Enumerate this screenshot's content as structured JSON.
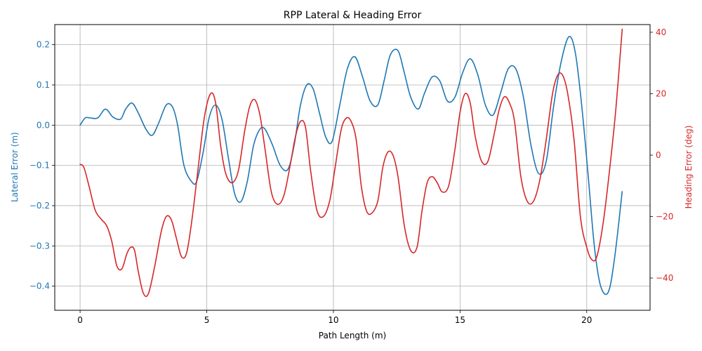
{
  "chart_data": {
    "type": "line",
    "title": "RPP Lateral & Heading Error",
    "xlabel": "Path Length (m)",
    "ylabel_left": "Lateral Error (m)",
    "ylabel_right": "Heading Error (deg)",
    "xlim": [
      -1.0,
      22.5
    ],
    "ylim_left": [
      -0.46,
      0.25
    ],
    "ylim_right": [
      -50.5,
      42.5
    ],
    "grid": true,
    "x_ticks": [
      0,
      5,
      10,
      15,
      20
    ],
    "y_ticks_left": [
      0.2,
      0.1,
      0.0,
      -0.1,
      -0.2,
      -0.3,
      -0.4
    ],
    "y_ticks_right": [
      40,
      20,
      0,
      -20,
      -40
    ],
    "x_tick_labels": [
      "0",
      "5",
      "10",
      "15",
      "20"
    ],
    "y_tick_labels_left": [
      "0.2",
      "0.1",
      "0.0",
      "−0.1",
      "−0.2",
      "−0.3",
      "−0.4"
    ],
    "y_tick_labels_right": [
      "40",
      "20",
      "0",
      "−20",
      "−40"
    ],
    "colors": {
      "left": "#1f77b4",
      "right": "#d62728"
    },
    "series": [
      {
        "axis": "left",
        "color": "#1f77b4",
        "x": [
          0.0,
          0.2,
          0.4,
          0.7,
          1.0,
          1.3,
          1.6,
          1.8,
          2.05,
          2.3,
          2.6,
          2.85,
          3.1,
          3.4,
          3.65,
          3.85,
          4.1,
          4.4,
          4.6,
          4.85,
          5.1,
          5.35,
          5.6,
          5.85,
          6.1,
          6.35,
          6.6,
          6.85,
          7.1,
          7.3,
          7.6,
          7.9,
          8.2,
          8.45,
          8.7,
          8.95,
          9.2,
          9.45,
          9.7,
          9.95,
          10.25,
          10.55,
          10.85,
          11.15,
          11.45,
          11.75,
          12.0,
          12.25,
          12.55,
          12.8,
          13.05,
          13.35,
          13.6,
          13.9,
          14.2,
          14.5,
          14.8,
          15.1,
          15.4,
          15.7,
          16.0,
          16.3,
          16.6,
          16.9,
          17.2,
          17.5,
          17.8,
          18.1,
          18.4,
          18.7,
          19.0,
          19.3,
          19.55,
          19.8,
          20.05,
          20.3,
          20.55,
          20.85,
          21.1,
          21.4
        ],
        "y": [
          0.0,
          0.018,
          0.018,
          0.018,
          0.04,
          0.02,
          0.015,
          0.04,
          0.055,
          0.03,
          -0.01,
          -0.025,
          0.005,
          0.05,
          0.045,
          0.0,
          -0.1,
          -0.14,
          -0.14,
          -0.07,
          0.02,
          0.05,
          0.015,
          -0.08,
          -0.17,
          -0.19,
          -0.14,
          -0.05,
          -0.01,
          -0.01,
          -0.05,
          -0.1,
          -0.11,
          -0.05,
          0.05,
          0.1,
          0.09,
          0.03,
          -0.03,
          -0.04,
          0.05,
          0.14,
          0.17,
          0.12,
          0.06,
          0.05,
          0.11,
          0.175,
          0.185,
          0.13,
          0.07,
          0.04,
          0.08,
          0.12,
          0.11,
          0.06,
          0.07,
          0.13,
          0.165,
          0.125,
          0.05,
          0.025,
          0.08,
          0.14,
          0.14,
          0.07,
          -0.05,
          -0.12,
          -0.09,
          0.05,
          0.16,
          0.22,
          0.18,
          0.05,
          -0.12,
          -0.3,
          -0.4,
          -0.415,
          -0.33,
          -0.165
        ]
      },
      {
        "axis": "right",
        "color": "#d62728",
        "x": [
          0.0,
          0.15,
          0.35,
          0.6,
          0.85,
          1.05,
          1.25,
          1.45,
          1.65,
          1.85,
          2.0,
          2.15,
          2.3,
          2.5,
          2.7,
          2.95,
          3.2,
          3.4,
          3.6,
          3.8,
          4.0,
          4.2,
          4.4,
          4.65,
          4.9,
          5.15,
          5.35,
          5.55,
          5.75,
          6.0,
          6.25,
          6.5,
          6.7,
          6.9,
          7.1,
          7.3,
          7.55,
          7.8,
          8.05,
          8.3,
          8.5,
          8.7,
          8.9,
          9.1,
          9.35,
          9.6,
          9.85,
          10.05,
          10.3,
          10.5,
          10.7,
          10.9,
          11.1,
          11.3,
          11.5,
          11.75,
          11.95,
          12.15,
          12.35,
          12.55,
          12.8,
          13.05,
          13.3,
          13.5,
          13.7,
          13.9,
          14.1,
          14.3,
          14.55,
          14.8,
          15.0,
          15.2,
          15.4,
          15.6,
          15.85,
          16.1,
          16.35,
          16.55,
          16.75,
          16.95,
          17.15,
          17.4,
          17.65,
          17.9,
          18.15,
          18.4,
          18.65,
          18.85,
          19.05,
          19.25,
          19.5,
          19.75,
          20.0,
          20.2,
          20.4,
          20.65,
          20.9,
          21.15,
          21.4
        ],
        "y": [
          -3,
          -4,
          -10,
          -18,
          -21,
          -23,
          -28,
          -36,
          -37,
          -32,
          -30,
          -31,
          -38,
          -45,
          -45,
          -36,
          -25,
          -20,
          -21,
          -27,
          -33,
          -32,
          -22,
          -5,
          12,
          20,
          17,
          3,
          -6,
          -9,
          -5,
          8,
          16,
          18,
          13,
          2,
          -12,
          -16,
          -13,
          -3,
          6,
          11,
          9,
          -5,
          -18,
          -20,
          -15,
          -5,
          8,
          12,
          11,
          5,
          -10,
          -18,
          -19,
          -15,
          -4,
          1,
          0,
          -7,
          -23,
          -31,
          -30,
          -18,
          -9,
          -7,
          -9,
          -12,
          -10,
          2,
          14,
          20,
          17,
          6,
          -2,
          -2,
          7,
          15,
          19,
          17,
          11,
          -7,
          -15,
          -15,
          -8,
          5,
          20,
          26,
          26,
          20,
          5,
          -20,
          -30,
          -34,
          -33,
          -22,
          -5,
          15,
          41
        ]
      }
    ]
  }
}
